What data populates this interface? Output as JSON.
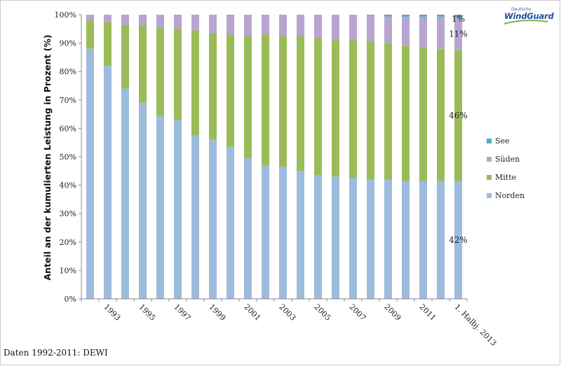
{
  "source_note": "Daten 1992-2011: DEWI",
  "logo": {
    "line1": "Deutsche",
    "line2": "WindGuard"
  },
  "chart_data": {
    "type": "bar",
    "stacked": true,
    "ylabel": "Anteil an der kumulierten Leistung in Prozent (%)",
    "xlabel": "",
    "ylim": [
      0,
      100
    ],
    "yticks": [
      0,
      10,
      20,
      30,
      40,
      50,
      60,
      70,
      80,
      90,
      100
    ],
    "ytick_labels": [
      "0%",
      "10%",
      "20%",
      "30%",
      "40%",
      "50%",
      "60%",
      "70%",
      "80%",
      "90%",
      "100%"
    ],
    "categories": [
      "1992",
      "1993",
      "1994",
      "1995",
      "1996",
      "1997",
      "1998",
      "1999",
      "2000",
      "2001",
      "2002",
      "2003",
      "2004",
      "2005",
      "2006",
      "2007",
      "2008",
      "2009",
      "2010",
      "2011",
      "2012",
      "1. Halbj. 2013"
    ],
    "xtick_labels": [
      {
        "category": "1993",
        "label": "1993"
      },
      {
        "category": "1995",
        "label": "1995"
      },
      {
        "category": "1997",
        "label": "1997"
      },
      {
        "category": "1999",
        "label": "1999"
      },
      {
        "category": "2001",
        "label": "2001"
      },
      {
        "category": "2003",
        "label": "2003"
      },
      {
        "category": "2005",
        "label": "2005"
      },
      {
        "category": "2007",
        "label": "2007"
      },
      {
        "category": "2009",
        "label": "2009"
      },
      {
        "category": "2011",
        "label": "2011"
      },
      {
        "category": "1. Halbj. 2013",
        "label": "1. Halbj. 2013"
      }
    ],
    "series": [
      {
        "name": "Norden",
        "color": "#9dbbdd",
        "values": [
          88,
          82,
          74,
          69,
          64.5,
          63,
          57.5,
          56,
          53.5,
          49.5,
          47,
          46.5,
          45,
          43.5,
          43,
          42.5,
          42,
          42,
          41.5,
          41.5,
          41.5,
          41.5
        ]
      },
      {
        "name": "Mitte",
        "color": "#9bbb59",
        "values": [
          10,
          15.5,
          22.5,
          27.5,
          31,
          32,
          37,
          37.5,
          39.5,
          43,
          46,
          46,
          47.5,
          48.5,
          48,
          48.5,
          48.5,
          48,
          47.5,
          47,
          46.5,
          46
        ]
      },
      {
        "name": "Süden",
        "color": "#b7a5cf",
        "values": [
          2,
          2.5,
          3.5,
          3.5,
          4.5,
          5,
          5.5,
          6.5,
          7,
          7.5,
          7,
          7.5,
          7.5,
          8,
          9,
          9,
          9.2,
          9.4,
          10.3,
          10.8,
          11.3,
          11.5
        ]
      },
      {
        "name": "See",
        "color": "#4bacc6",
        "values": [
          0,
          0,
          0,
          0,
          0,
          0,
          0,
          0,
          0,
          0,
          0,
          0,
          0,
          0,
          0,
          0,
          0.3,
          0.6,
          0.7,
          0.7,
          0.7,
          1
        ]
      }
    ],
    "legend": {
      "placement": "right",
      "order": [
        "See",
        "Süden",
        "Mitte",
        "Norden"
      ]
    },
    "annotations": [
      {
        "text": "1%",
        "series": "See",
        "category": "1. Halbj. 2013"
      },
      {
        "text": "11%",
        "series": "Süden",
        "category": "1. Halbj. 2013"
      },
      {
        "text": "46%",
        "series": "Mitte",
        "category": "1. Halbj. 2013"
      },
      {
        "text": "42%",
        "series": "Norden",
        "category": "1. Halbj. 2013"
      }
    ],
    "grid": false
  }
}
